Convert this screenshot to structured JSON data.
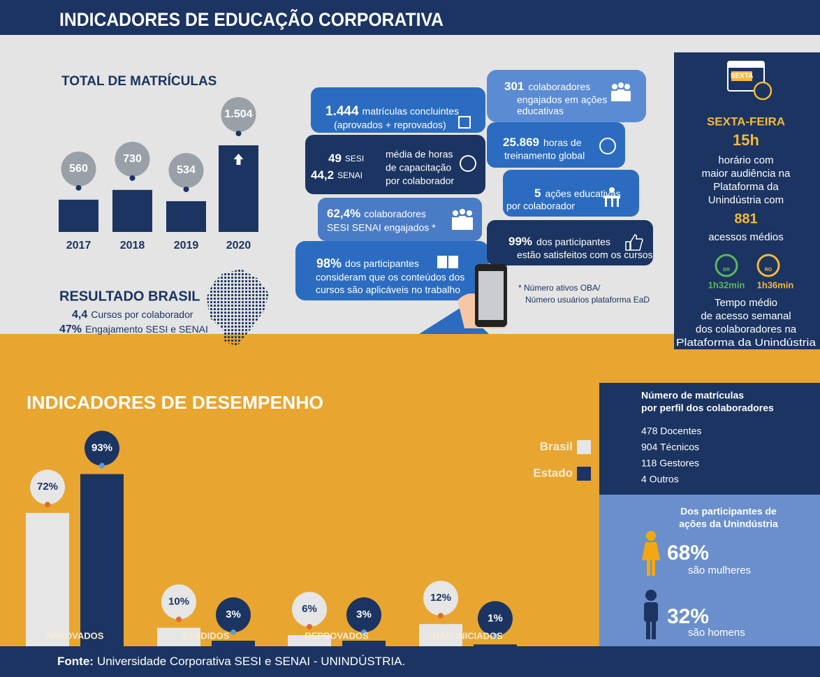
{
  "header": {
    "title": "INDICADORES DE EDUCAÇÃO CORPORATIVA"
  },
  "matriculas": {
    "title": "TOTAL DE MATRÍCULAS",
    "categories": [
      "2017",
      "2018",
      "2019",
      "2020"
    ],
    "values": [
      560,
      730,
      534,
      1504
    ],
    "value_labels": [
      "560",
      "730",
      "534",
      "1.504"
    ]
  },
  "resultado_brasil": {
    "title": "RESULTADO BRASIL",
    "items": [
      {
        "value": "4,4",
        "text": "Cursos por colaborador"
      },
      {
        "value": "47%",
        "text": "Engajamento SESI e SENAI"
      }
    ]
  },
  "highlights": [
    {
      "value": "1.444",
      "lines": [
        "matrículas concluintes",
        "(aprovados + reprovados)"
      ]
    },
    {
      "values": [
        "49",
        "44,2"
      ],
      "units": [
        "SESI",
        "SENAI"
      ],
      "lines": [
        "média de horas",
        "de capacitação",
        "por colaborador"
      ]
    },
    {
      "value": "62,4%",
      "lines": [
        "colaboradores",
        "SESI SENAI engajados *"
      ]
    },
    {
      "value": "98%",
      "lines": [
        "dos participantes",
        "consideram que os conteúdos dos",
        "cursos são aplicáveis no trabalho"
      ]
    },
    {
      "value": "301",
      "lines": [
        "colaboradores",
        "engajados em ações",
        "educativas"
      ]
    },
    {
      "value": "25.869",
      "lines": [
        "horas de",
        "treinamento global"
      ]
    },
    {
      "value": "5",
      "lines": [
        "ações educativas",
        "por colaborador"
      ]
    },
    {
      "value": "99%",
      "lines": [
        "dos participantes",
        "estão satisfeitos com os cursos"
      ]
    }
  ],
  "note": [
    "* Número ativos OBA/",
    "Número usuários plataforma EaD"
  ],
  "sexta": {
    "icon_label": "SEXTA",
    "day": "SEXTA-FEIRA",
    "hour": "15h",
    "lines": [
      "horário com",
      "maior audiência na",
      "Plataforma da",
      "Unindústria com"
    ],
    "accesses": "881",
    "accesses_label": "acessos médios",
    "times": [
      {
        "region": "BR",
        "time": "1h32min"
      },
      {
        "region": "RO",
        "time": "1h36min"
      }
    ],
    "time_lines": [
      "Tempo médio",
      "de acesso semanal",
      "dos colaboradores na",
      "Plataforma da Unindústria"
    ]
  },
  "desempenho": {
    "title": "INDICADORES DE DESEMPENHO",
    "categories": [
      "APROVADOS",
      "EVADIDOS",
      "REPROVADOS",
      "NÃO INICIADOS"
    ],
    "series": [
      {
        "name": "Brasil",
        "color": "#e6e6e6",
        "values": [
          72,
          10,
          6,
          12
        ],
        "value_labels": [
          "72%",
          "10%",
          "6%",
          "12%"
        ]
      },
      {
        "name": "Estado",
        "color": "#1b3461",
        "values": [
          93,
          3,
          3,
          1
        ],
        "value_labels": [
          "93%",
          "3%",
          "3%",
          "1%"
        ]
      }
    ]
  },
  "perfil": {
    "title_lines": [
      "Número de matrículas",
      "por perfil dos colaboradores"
    ],
    "items": [
      "478 Docentes",
      "904 Técnicos",
      "118 Gestores",
      "4 Outros"
    ]
  },
  "genero": {
    "title_lines": [
      "Dos participantes de",
      "ações da Unindústria"
    ],
    "groups": [
      {
        "value": "68%",
        "label": "são mulheres"
      },
      {
        "value": "32%",
        "label": "são homens"
      }
    ]
  },
  "footer": {
    "label": "Fonte:",
    "text": "Universidade Corporativa SESI e SENAI - UNINDÚSTRIA."
  }
}
